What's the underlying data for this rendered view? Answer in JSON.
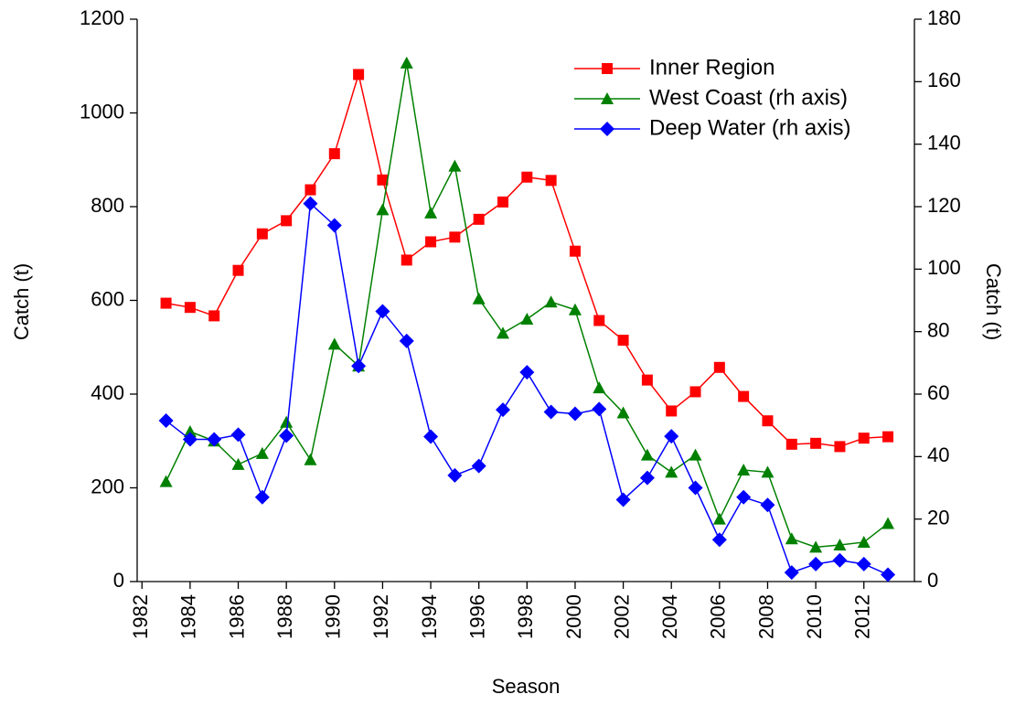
{
  "chart_data": {
    "type": "line",
    "x": [
      1983,
      1984,
      1985,
      1986,
      1987,
      1988,
      1989,
      1990,
      1991,
      1992,
      1993,
      1994,
      1995,
      1996,
      1997,
      1998,
      1999,
      2000,
      2001,
      2002,
      2003,
      2004,
      2005,
      2006,
      2007,
      2008,
      2009,
      2010,
      2011,
      2012,
      2013
    ],
    "series": [
      {
        "name": "Inner Region",
        "color": "#ff0000",
        "marker": "square",
        "values": [
          594,
          585,
          567,
          664,
          742,
          770,
          836,
          913,
          1082,
          857,
          686,
          725,
          735,
          773,
          810,
          863,
          856,
          705,
          557,
          515,
          430,
          364,
          405,
          457,
          395,
          343,
          293,
          295,
          288,
          306,
          309
        ]
      },
      {
        "name": "West Coast (rh axis)",
        "color": "#008000",
        "marker": "triangle",
        "axis": "y2",
        "values": [
          32,
          48,
          45,
          37.5,
          41,
          51,
          39,
          76,
          69,
          119,
          166,
          118,
          133,
          90.5,
          79.5,
          84,
          89.5,
          87,
          62,
          54,
          40.5,
          35,
          40.5,
          20,
          35.7,
          35,
          13.7,
          11,
          11.7,
          12.6,
          18.6
        ]
      },
      {
        "name": "Deep Water (rh axis)",
        "color": "#0000ff",
        "marker": "diamond",
        "axis": "y2",
        "values": [
          51.5,
          45.5,
          45.5,
          47,
          27,
          46.7,
          121,
          114,
          69,
          86.5,
          77,
          46.4,
          34,
          37,
          55,
          67,
          54.3,
          53.7,
          55.2,
          26.2,
          33.2,
          46.5,
          30,
          13.4,
          27,
          24.5,
          2.9,
          5.6,
          6.8,
          5.6,
          2.2
        ]
      }
    ],
    "x_label": "Season",
    "y_label": "Catch (t)",
    "y2_label": "Catch (t)",
    "xlim": [
      1981.8,
      2014.1
    ],
    "xticks": [
      1982,
      1984,
      1986,
      1988,
      1990,
      1992,
      1994,
      1996,
      1998,
      2000,
      2002,
      2004,
      2006,
      2008,
      2010,
      2012
    ],
    "ylim": [
      0,
      1200
    ],
    "yticks": [
      0,
      200,
      400,
      600,
      800,
      1000,
      1200
    ],
    "y2lim": [
      0,
      180
    ],
    "y2ticks": [
      0,
      20,
      40,
      60,
      80,
      100,
      120,
      140,
      160,
      180
    ],
    "legend": "upper-right"
  }
}
